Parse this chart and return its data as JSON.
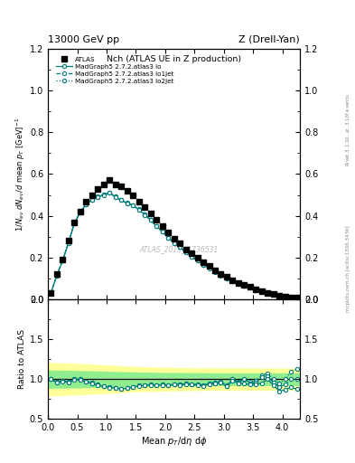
{
  "title_top": "13000 GeV pp",
  "title_right": "Z (Drell-Yan)",
  "plot_title": "Nch (ATLAS UE in Z production)",
  "xlabel": "Mean $p_{T}$/d$\\eta$ d$\\phi$",
  "ylabel_main": "$1/N_{ev}$ $dN_{ev}/d$ mean $p_T$ [GeV]$^{-1}$",
  "ylabel_ratio": "Ratio to ATLAS",
  "right_label_top": "Rivet 3.1.10, $\\geq$ 3.1M events",
  "right_label_bottom": "mcplots.cern.ch [arXiv:1306.3436]",
  "watermark": "ATLAS_2019_I1736531",
  "atlas_data_x": [
    0.05,
    0.15,
    0.25,
    0.35,
    0.45,
    0.55,
    0.65,
    0.75,
    0.85,
    0.95,
    1.05,
    1.15,
    1.25,
    1.35,
    1.45,
    1.55,
    1.65,
    1.75,
    1.85,
    1.95,
    2.05,
    2.15,
    2.25,
    2.35,
    2.45,
    2.55,
    2.65,
    2.75,
    2.85,
    2.95,
    3.05,
    3.15,
    3.25,
    3.35,
    3.45,
    3.55,
    3.65,
    3.75,
    3.85,
    3.95,
    4.05,
    4.15,
    4.25
  ],
  "atlas_data_y": [
    0.03,
    0.12,
    0.19,
    0.28,
    0.37,
    0.42,
    0.47,
    0.5,
    0.53,
    0.55,
    0.57,
    0.55,
    0.54,
    0.52,
    0.5,
    0.47,
    0.44,
    0.41,
    0.38,
    0.35,
    0.32,
    0.29,
    0.27,
    0.24,
    0.22,
    0.2,
    0.18,
    0.16,
    0.14,
    0.12,
    0.11,
    0.09,
    0.08,
    0.07,
    0.06,
    0.05,
    0.04,
    0.03,
    0.025,
    0.02,
    0.015,
    0.01,
    0.008
  ],
  "mc_x": [
    0.05,
    0.15,
    0.25,
    0.35,
    0.45,
    0.55,
    0.65,
    0.75,
    0.85,
    0.95,
    1.05,
    1.15,
    1.25,
    1.35,
    1.45,
    1.55,
    1.65,
    1.75,
    1.85,
    1.95,
    2.05,
    2.15,
    2.25,
    2.35,
    2.45,
    2.55,
    2.65,
    2.75,
    2.85,
    2.95,
    3.05,
    3.15,
    3.25,
    3.35,
    3.45,
    3.55,
    3.65,
    3.75,
    3.85,
    3.95,
    4.05,
    4.15,
    4.25
  ],
  "mc_lo_y": [
    0.03,
    0.115,
    0.185,
    0.27,
    0.365,
    0.415,
    0.455,
    0.475,
    0.49,
    0.5,
    0.51,
    0.49,
    0.475,
    0.46,
    0.45,
    0.43,
    0.405,
    0.38,
    0.35,
    0.325,
    0.295,
    0.27,
    0.25,
    0.225,
    0.205,
    0.185,
    0.165,
    0.15,
    0.132,
    0.115,
    0.1,
    0.088,
    0.076,
    0.066,
    0.056,
    0.047,
    0.038,
    0.03,
    0.023,
    0.017,
    0.013,
    0.009,
    0.007
  ],
  "mc_lo1jet_y": [
    0.03,
    0.115,
    0.186,
    0.271,
    0.366,
    0.416,
    0.456,
    0.476,
    0.491,
    0.501,
    0.511,
    0.491,
    0.476,
    0.461,
    0.451,
    0.431,
    0.406,
    0.381,
    0.351,
    0.326,
    0.296,
    0.271,
    0.251,
    0.226,
    0.206,
    0.186,
    0.166,
    0.151,
    0.133,
    0.116,
    0.101,
    0.089,
    0.077,
    0.067,
    0.057,
    0.048,
    0.039,
    0.031,
    0.024,
    0.018,
    0.014,
    0.01,
    0.008
  ],
  "mc_lo2jet_y": [
    0.03,
    0.116,
    0.187,
    0.272,
    0.367,
    0.417,
    0.457,
    0.477,
    0.492,
    0.502,
    0.512,
    0.492,
    0.477,
    0.462,
    0.452,
    0.432,
    0.407,
    0.382,
    0.352,
    0.327,
    0.297,
    0.272,
    0.252,
    0.227,
    0.207,
    0.187,
    0.167,
    0.152,
    0.134,
    0.117,
    0.102,
    0.09,
    0.078,
    0.068,
    0.058,
    0.049,
    0.04,
    0.032,
    0.025,
    0.019,
    0.015,
    0.011,
    0.009
  ],
  "ratio_lo_y": [
    1.0,
    0.96,
    0.97,
    0.96,
    0.99,
    0.99,
    0.97,
    0.95,
    0.92,
    0.91,
    0.895,
    0.89,
    0.88,
    0.885,
    0.9,
    0.915,
    0.92,
    0.927,
    0.921,
    0.929,
    0.922,
    0.931,
    0.926,
    0.938,
    0.932,
    0.925,
    0.917,
    0.938,
    0.943,
    0.958,
    0.909,
    0.978,
    0.95,
    0.943,
    0.933,
    0.94,
    0.95,
    1.0,
    0.92,
    0.85,
    0.867,
    0.9,
    0.875
  ],
  "ratio_lo1jet_y": [
    1.0,
    0.96,
    0.98,
    0.97,
    1.0,
    1.0,
    0.97,
    0.95,
    0.93,
    0.91,
    0.9,
    0.89,
    0.88,
    0.89,
    0.9,
    0.92,
    0.92,
    0.93,
    0.92,
    0.93,
    0.925,
    0.934,
    0.93,
    0.942,
    0.936,
    0.93,
    0.922,
    0.944,
    0.95,
    0.967,
    0.918,
    1.0,
    0.963,
    1.0,
    0.95,
    0.96,
    1.025,
    1.033,
    0.96,
    0.9,
    0.933,
    1.0,
    1.0
  ],
  "ratio_lo2jet_y": [
    1.0,
    0.97,
    0.98,
    0.97,
    1.0,
    1.0,
    0.97,
    0.954,
    0.932,
    0.911,
    0.898,
    0.893,
    0.883,
    0.888,
    0.902,
    0.919,
    0.925,
    0.932,
    0.926,
    0.934,
    0.928,
    0.938,
    0.933,
    0.946,
    0.941,
    0.935,
    0.928,
    0.95,
    0.957,
    0.975,
    0.927,
    1.0,
    0.975,
    1.0,
    0.967,
    0.98,
    1.05,
    1.067,
    1.0,
    0.95,
    1.0,
    1.1,
    1.125
  ],
  "color_teal": "#007b7b",
  "band_green": "#90EE90",
  "band_yellow": "#FFFF99",
  "ylim_main": [
    0.0,
    1.2
  ],
  "ylim_ratio": [
    0.5,
    2.0
  ],
  "xlim": [
    0.0,
    4.3
  ],
  "yticks_main": [
    0.0,
    0.2,
    0.4,
    0.6,
    0.8,
    1.0,
    1.2
  ],
  "yticks_ratio": [
    0.5,
    1.0,
    1.5,
    2.0
  ]
}
